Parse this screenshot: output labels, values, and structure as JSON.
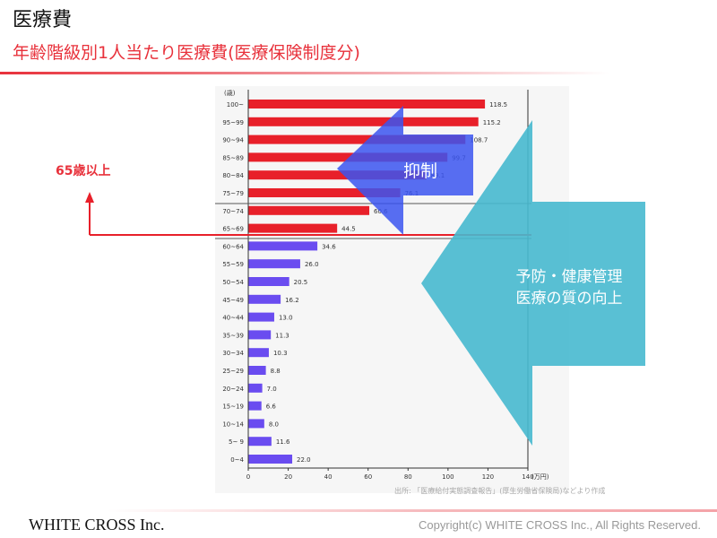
{
  "header": {
    "title": "医療費",
    "subtitle": "年齢階級別1人当たり医療費(医療保険制度分)"
  },
  "footer": {
    "company": "WHITE CROSS Inc.",
    "copyright": "Copyright(c) WHITE CROSS Inc., All Rights Reserved."
  },
  "annotations": {
    "age_65_label": "65歳以上",
    "suppress_label": "抑制",
    "improve_line1": "予防・健康管理",
    "improve_line2": "医療の質の向上"
  },
  "colors": {
    "red_bar": "#e8202a",
    "blue_bar": "#6a4cf0",
    "blue_arrow": "#3b55f0",
    "teal_arrow": "#47b9cf",
    "red_line": "#e8202a"
  },
  "chart_data": {
    "type": "bar",
    "orientation": "horizontal",
    "ylabel_unit": "(歳)",
    "xlabel_unit": "(万円)",
    "xlim": [
      0,
      140
    ],
    "xticks": [
      "0",
      "20",
      "40",
      "60",
      "80",
      "100",
      "120",
      "140"
    ],
    "source": "出所: 「医療給付実態調査報告」(厚生労働省保険局)などより作成",
    "categories": [
      "100~",
      "95~99",
      "90~94",
      "85~89",
      "80~84",
      "75~79",
      "70~74",
      "65~69",
      "60~64",
      "55~59",
      "50~54",
      "45~49",
      "40~44",
      "35~39",
      "30~34",
      "25~29",
      "20~24",
      "15~19",
      "10~14",
      "5~ 9",
      "0~4"
    ],
    "values": [
      118.5,
      115.2,
      108.7,
      99.7,
      89.1,
      76.1,
      60.6,
      44.5,
      34.6,
      26.0,
      20.5,
      16.2,
      13.0,
      11.3,
      10.3,
      8.8,
      7.0,
      6.6,
      8.0,
      11.6,
      22.0
    ],
    "value_labels": [
      "118.5",
      "115.2",
      "108.7",
      "99.7",
      "89.1",
      "76.1",
      "60.6",
      "44.5",
      "34.6",
      "26.0",
      "20.5",
      "16.2",
      "13.0",
      "11.3",
      "10.3",
      "8.8",
      "7.0",
      "6.6",
      "8.0",
      "11.6",
      "22.0"
    ],
    "red_count": 8
  }
}
